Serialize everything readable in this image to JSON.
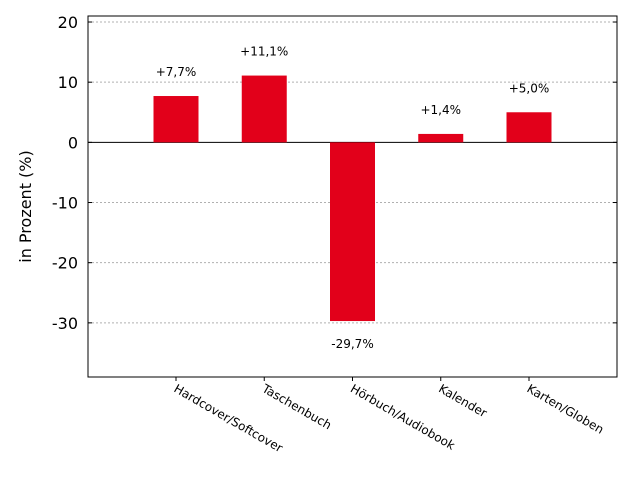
{
  "chart_data": {
    "type": "bar",
    "categories": [
      "Hardcover/Softcover",
      "Taschenbuch",
      "Hörbuch/Audiobook",
      "Kalender",
      "Karten/Globen"
    ],
    "values": [
      7.7,
      11.1,
      -29.7,
      1.4,
      5.0
    ],
    "data_labels": [
      "+7,7%",
      "+11,1%",
      "-29,7%",
      "+1,4%",
      "+5,0%"
    ],
    "ylabel": "in Prozent (%)",
    "ylim": [
      -39,
      21
    ],
    "yticks": [
      20,
      10,
      0,
      -10,
      -20,
      -30
    ],
    "grid": true,
    "bar_color": "#e2001a"
  }
}
